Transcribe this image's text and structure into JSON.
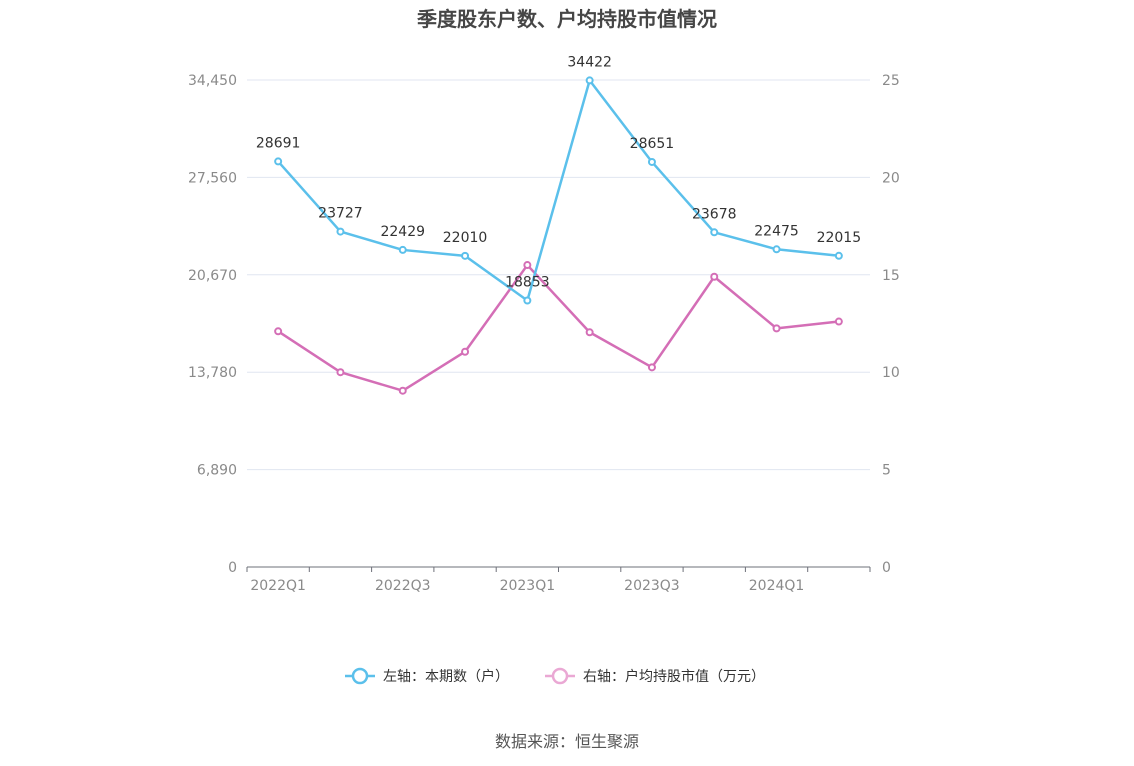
{
  "chart_data": {
    "type": "line",
    "title": "季度股东户数、户均持股市值情况",
    "categories": [
      "2022Q1",
      "2022Q2",
      "2022Q3",
      "2022Q4",
      "2023Q1",
      "2023Q2",
      "2023Q3",
      "2023Q4",
      "2024Q1",
      "2024Q2"
    ],
    "x_tick_labels": [
      "2022Q1",
      "2022Q3",
      "2023Q1",
      "2023Q3",
      "2024Q1"
    ],
    "left_axis": {
      "ylim": [
        0,
        34450
      ],
      "tick_labels": [
        "0",
        "6,890",
        "13,780",
        "20,670",
        "27,560",
        "34,450"
      ]
    },
    "right_axis": {
      "ylim": [
        0,
        25
      ],
      "tick_labels": [
        "0",
        "5",
        "10",
        "15",
        "20",
        "25"
      ]
    },
    "grid": true,
    "legend_position": "bottom",
    "series": [
      {
        "name": "左轴：本期数（户）",
        "axis": "left",
        "color": "#5bc0eb",
        "values": [
          28691,
          23727,
          22429,
          22010,
          18853,
          34422,
          28651,
          23678,
          22475,
          22015
        ],
        "labels": [
          "28691",
          "23727",
          "22429",
          "22010",
          "18853",
          "34422",
          "28651",
          "23678",
          "22475",
          "22015"
        ]
      },
      {
        "name": "右轴：户均持股市值（万元）",
        "axis": "right",
        "color": "#d46eb6",
        "values": [
          12.1,
          10.0,
          9.05,
          11.05,
          15.5,
          12.05,
          10.25,
          14.9,
          12.25,
          12.6
        ]
      }
    ]
  },
  "footer": {
    "source": "数据来源：恒生聚源"
  }
}
